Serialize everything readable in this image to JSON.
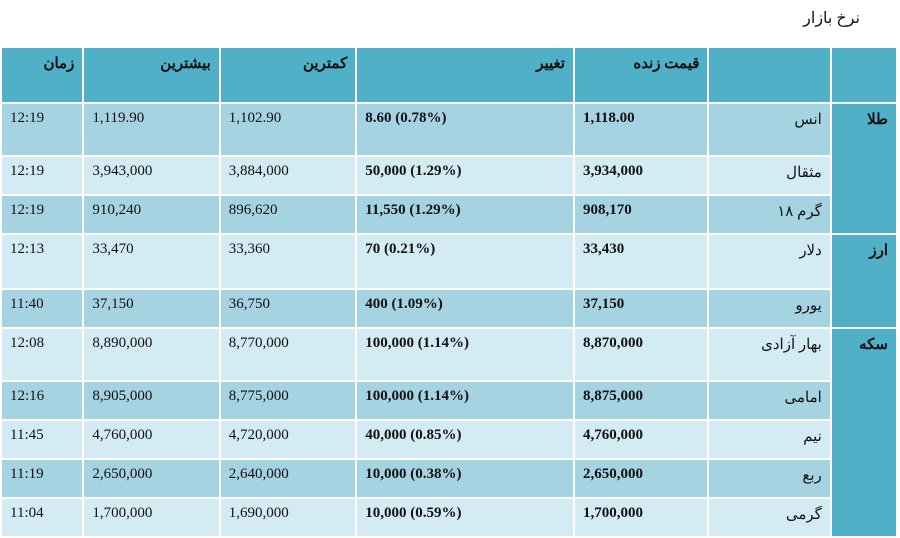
{
  "title": "نرخ بازار",
  "headers": {
    "group": "",
    "name": "",
    "live_price": "قیمت زنده",
    "change": "تغییر",
    "min": "کمترین",
    "max": "بیشترین",
    "time": "زمان"
  },
  "groups": [
    {
      "label": "طلا",
      "rows": [
        {
          "name": "انس",
          "live": "1,118.00",
          "change": "8.60 (0.78%)",
          "min": "1,102.90",
          "max": "1,119.90",
          "time": "12:19"
        },
        {
          "name": "مثقال",
          "live": "3,934,000",
          "change": "50,000 (1.29%)",
          "min": "3,884,000",
          "max": "3,943,000",
          "time": "12:19"
        },
        {
          "name": "گرم ۱۸",
          "live": "908,170",
          "change": "11,550 (1.29%)",
          "min": "896,620",
          "max": "910,240",
          "time": "12:19"
        }
      ]
    },
    {
      "label": "ارز",
      "rows": [
        {
          "name": "دلار",
          "live": "33,430",
          "change": "70 (0.21%)",
          "min": "33,360",
          "max": "33,470",
          "time": "12:13"
        },
        {
          "name": "یورو",
          "live": "37,150",
          "change": "400 (1.09%)",
          "min": "36,750",
          "max": "37,150",
          "time": "11:40"
        }
      ]
    },
    {
      "label": "سکه",
      "rows": [
        {
          "name": "بهار آزادی",
          "live": "8,870,000",
          "change": "100,000 (1.14%)",
          "min": "8,770,000",
          "max": "8,890,000",
          "time": "12:08"
        },
        {
          "name": "امامی",
          "live": "8,875,000",
          "change": "100,000 (1.14%)",
          "min": "8,775,000",
          "max": "8,905,000",
          "time": "12:16"
        },
        {
          "name": "نیم",
          "live": "4,760,000",
          "change": "40,000 (0.85%)",
          "min": "4,720,000",
          "max": "4,760,000",
          "time": "11:45"
        },
        {
          "name": "ربع",
          "live": "2,650,000",
          "change": "10,000 (0.38%)",
          "min": "2,640,000",
          "max": "2,650,000",
          "time": "11:19"
        },
        {
          "name": "گرمی",
          "live": "1,700,000",
          "change": "10,000 (0.59%)",
          "min": "1,690,000",
          "max": "1,700,000",
          "time": "11:04"
        }
      ]
    }
  ]
}
